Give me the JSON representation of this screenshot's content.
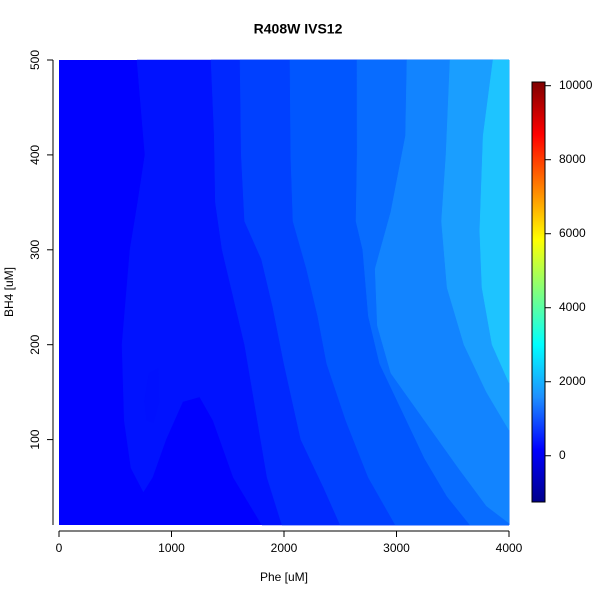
{
  "chart_data": {
    "type": "filled-contour",
    "title": "R408W  IVS12",
    "x_label": "Phe [uM]",
    "y_label": "BH4 [uM]",
    "xlim": [
      0,
      4000
    ],
    "ylim": [
      10,
      500
    ],
    "xticks": [
      0,
      1000,
      2000,
      3000,
      4000
    ],
    "yticks": [
      100,
      200,
      300,
      400,
      500
    ],
    "base_level": 0,
    "base_color": "#0000ff",
    "bands": [
      {
        "level": 250,
        "color": "#0012ff",
        "points": [
          [
            693,
            500
          ],
          [
            764,
            400
          ],
          [
            700,
            350
          ],
          [
            631,
            300
          ],
          [
            560,
            200
          ],
          [
            580,
            120
          ],
          [
            640,
            70
          ],
          [
            750,
            45
          ],
          [
            830,
            60
          ],
          [
            950,
            100
          ],
          [
            1100,
            140
          ],
          [
            1250,
            145
          ],
          [
            1370,
            120
          ],
          [
            1550,
            60
          ],
          [
            1804,
            10
          ],
          [
            4000,
            10
          ],
          [
            4000,
            500
          ]
        ]
      },
      {
        "level": 250,
        "color": "#0010ff",
        "points": [
          [
            780,
            120
          ],
          [
            760,
            140
          ],
          [
            800,
            170
          ],
          [
            880,
            175
          ],
          [
            890,
            140
          ],
          [
            840,
            118
          ]
        ]
      },
      {
        "level": 500,
        "color": "#0028ff",
        "points": [
          [
            1351,
            500
          ],
          [
            1380,
            420
          ],
          [
            1390,
            350
          ],
          [
            1450,
            300
          ],
          [
            1550,
            250
          ],
          [
            1650,
            200
          ],
          [
            1750,
            130
          ],
          [
            1850,
            60
          ],
          [
            1982,
            10
          ],
          [
            4000,
            10
          ],
          [
            4000,
            500
          ]
        ]
      },
      {
        "level": 750,
        "color": "#0040ff",
        "points": [
          [
            1609,
            500
          ],
          [
            1620,
            400
          ],
          [
            1650,
            330
          ],
          [
            1800,
            290
          ],
          [
            1900,
            240
          ],
          [
            2000,
            180
          ],
          [
            2150,
            100
          ],
          [
            2350,
            50
          ],
          [
            2500,
            10
          ],
          [
            4000,
            10
          ],
          [
            4000,
            500
          ]
        ]
      },
      {
        "level": 1000,
        "color": "#0056ff",
        "points": [
          [
            2053,
            500
          ],
          [
            2060,
            400
          ],
          [
            2080,
            330
          ],
          [
            2200,
            280
          ],
          [
            2300,
            230
          ],
          [
            2380,
            180
          ],
          [
            2550,
            120
          ],
          [
            2750,
            60
          ],
          [
            2990,
            10
          ],
          [
            4000,
            10
          ],
          [
            4000,
            500
          ]
        ]
      },
      {
        "level": 1250,
        "color": "#086cff",
        "points": [
          [
            2649,
            500
          ],
          [
            2650,
            400
          ],
          [
            2640,
            330
          ],
          [
            2700,
            300
          ],
          [
            2750,
            230
          ],
          [
            2850,
            180
          ],
          [
            3050,
            130
          ],
          [
            3250,
            80
          ],
          [
            3450,
            40
          ],
          [
            3653,
            10
          ],
          [
            4000,
            10
          ],
          [
            4000,
            500
          ]
        ]
      },
      {
        "level": 1500,
        "color": "#1284ff",
        "points": [
          [
            3093,
            500
          ],
          [
            3080,
            420
          ],
          [
            2950,
            340
          ],
          [
            2810,
            280
          ],
          [
            2830,
            220
          ],
          [
            2950,
            170
          ],
          [
            3250,
            120
          ],
          [
            3550,
            70
          ],
          [
            3800,
            30
          ],
          [
            4000,
            12
          ],
          [
            4000,
            500
          ]
        ]
      },
      {
        "level": 1750,
        "color": "#1a9eff",
        "points": [
          [
            3476,
            500
          ],
          [
            3440,
            400
          ],
          [
            3400,
            330
          ],
          [
            3450,
            260
          ],
          [
            3600,
            200
          ],
          [
            3800,
            150
          ],
          [
            4000,
            110
          ],
          [
            4000,
            500
          ]
        ]
      },
      {
        "level": 2000,
        "color": "#1ec4ff",
        "points": [
          [
            3858,
            500
          ],
          [
            3770,
            420
          ],
          [
            3740,
            320
          ],
          [
            3760,
            260
          ],
          [
            3850,
            200
          ],
          [
            4000,
            160
          ],
          [
            4000,
            500
          ]
        ]
      }
    ],
    "colorbar": {
      "lim": [
        -1250,
        10100
      ],
      "ticks": [
        0,
        2000,
        4000,
        6000,
        8000,
        10000
      ],
      "colors": [
        "#00008b",
        "#0000ff",
        "#1e90ff",
        "#00ffff",
        "#7fff7f",
        "#ffff00",
        "#ff7f00",
        "#ff0000",
        "#7f0000"
      ]
    }
  }
}
